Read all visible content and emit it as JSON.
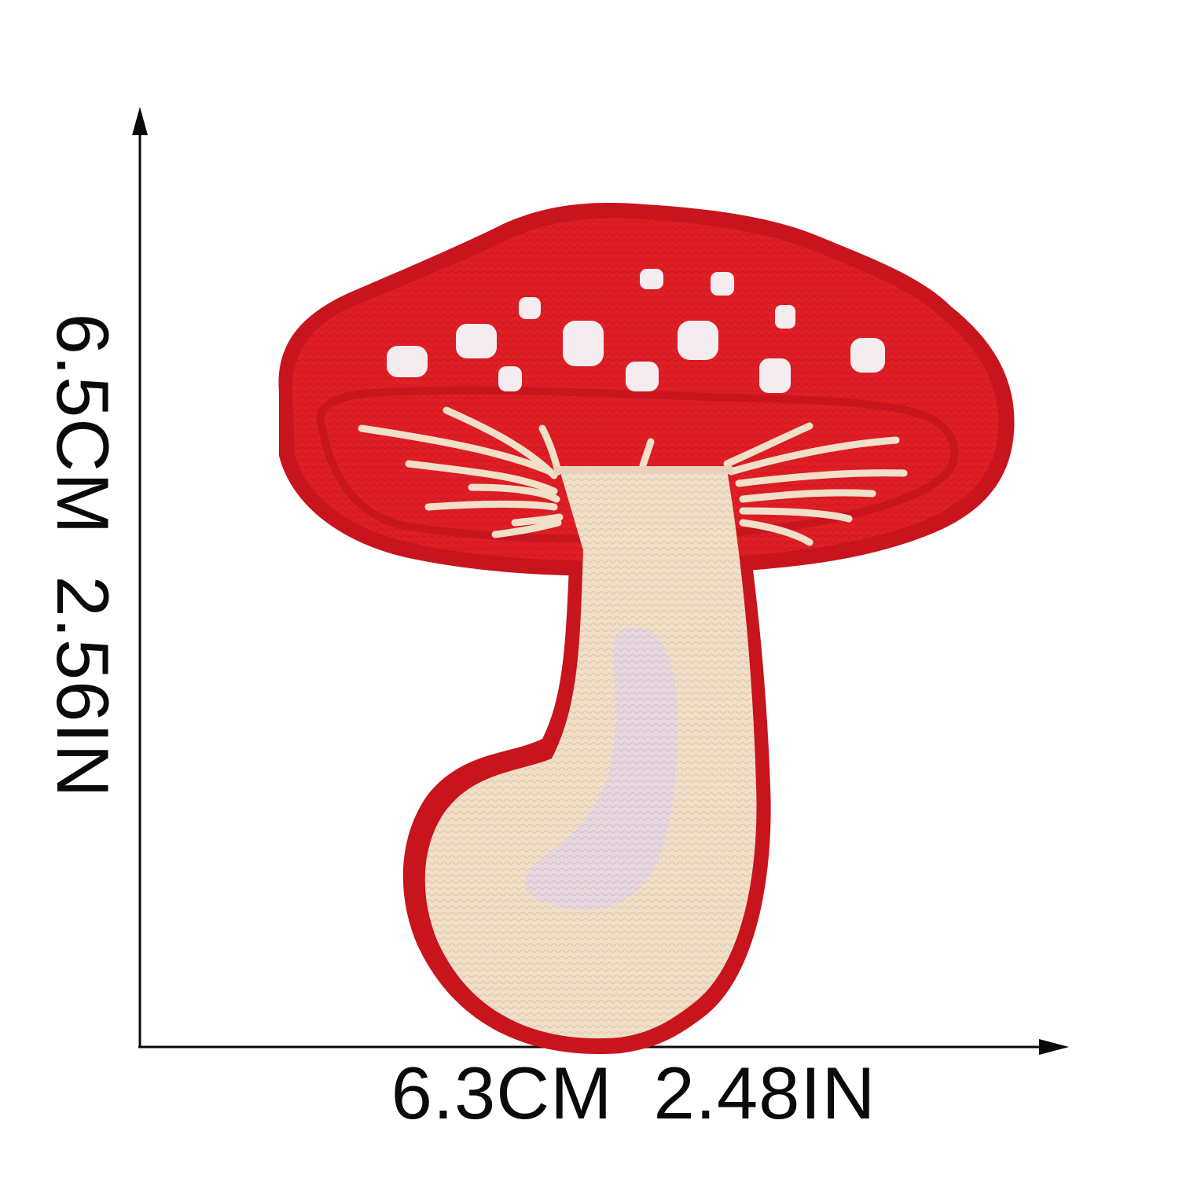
{
  "dimensions": {
    "width": {
      "cm": "6.3CM",
      "in": "2.48IN"
    },
    "height": {
      "cm": "6.5CM",
      "in": "2.56IN"
    }
  },
  "colors": {
    "background": "#ffffff",
    "cap_red": "#e01e26",
    "cap_border": "#c8141d",
    "stem_cream": "#f1dfc8",
    "stem_shade": "#e8d1bf",
    "spot_white": "#f4ecee",
    "stem_highlight": "#e6d7e1",
    "arrow": "#0a0a0a"
  },
  "subject": {
    "name": "mushroom-embroidered-patch"
  }
}
